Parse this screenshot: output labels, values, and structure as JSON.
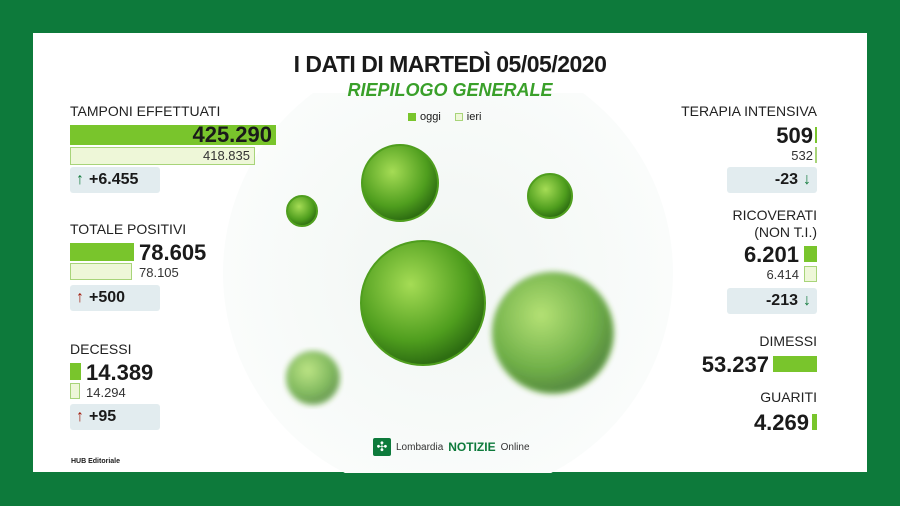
{
  "header": {
    "title": "I DATI DI MARTEDÌ 05/05/2020",
    "subtitle": "RIEPILOGO GENERALE"
  },
  "legend": {
    "today": "oggi",
    "yesterday": "ieri",
    "today_color": "#79c52c",
    "yesterday_color": "#eef7d8"
  },
  "left": [
    {
      "label": "TAMPONI EFFETTUATI",
      "today": "425.290",
      "yesterday": "418.835",
      "delta": "+6.455",
      "direction": "up",
      "arrow_color": "#107a3b"
    },
    {
      "label": "TOTALE POSITIVI",
      "today": "78.605",
      "yesterday": "78.105",
      "delta": "+500",
      "direction": "up",
      "arrow_color": "#a01a0a"
    },
    {
      "label": "DECESSI",
      "today": "14.389",
      "yesterday": "14.294",
      "delta": "+95",
      "direction": "up",
      "arrow_color": "#a01a0a"
    }
  ],
  "right": [
    {
      "label": "TERAPIA INTENSIVA",
      "today": "509",
      "yesterday": "532",
      "delta": "-23",
      "direction": "down"
    },
    {
      "label": "RICOVERATI",
      "label2": "(NON T.I.)",
      "today": "6.201",
      "yesterday": "6.414",
      "delta": "-213",
      "direction": "down"
    },
    {
      "label": "DIMESSI",
      "today": "53.237"
    },
    {
      "label": "GUARITI",
      "today": "4.269"
    }
  ],
  "icons": {
    "up": "↑",
    "down": "↓",
    "logo": "✣"
  },
  "brand": {
    "name": "Lombardia",
    "notizie": "NOTIZIE",
    "online": "Online"
  },
  "footer": {
    "credit": "HUB Editoriale"
  },
  "colors": {
    "border": "#0d7a3b",
    "accent": "#3aa02a"
  }
}
